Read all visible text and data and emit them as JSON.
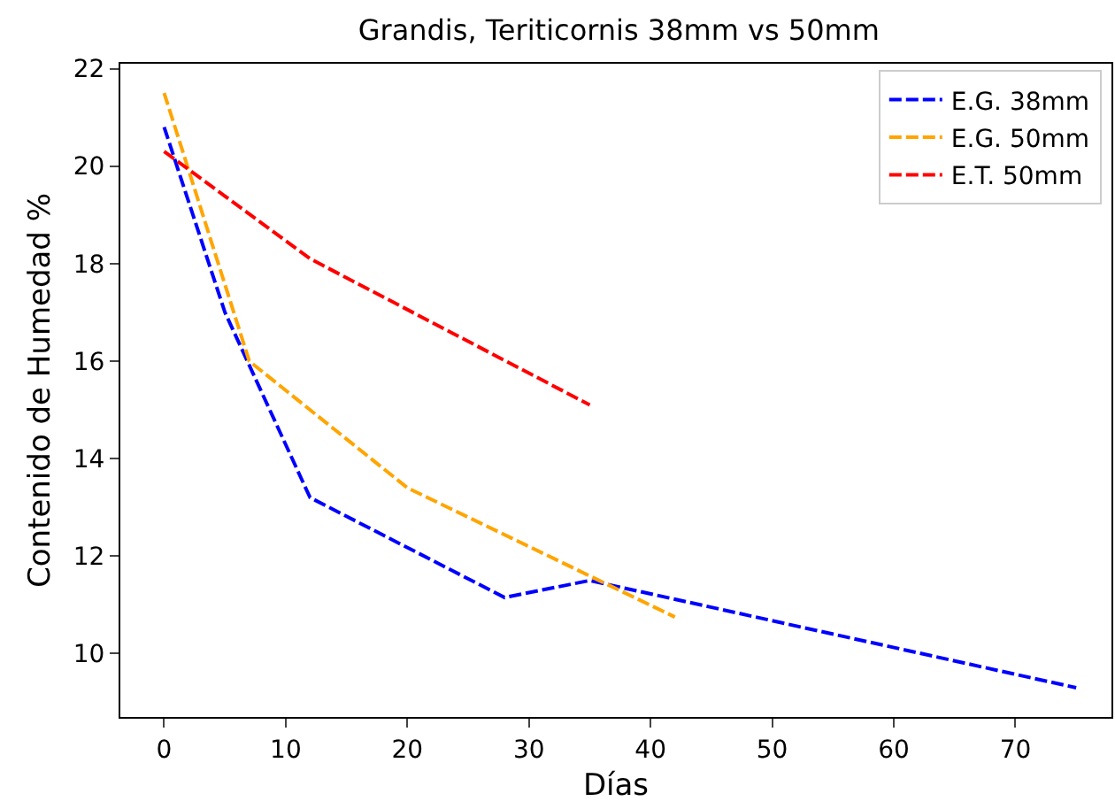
{
  "chart_data": {
    "type": "line",
    "title": "Grandis, Teriticornis 38mm vs 50mm",
    "xlabel": "Días",
    "ylabel": "Contenido de Humedad %",
    "series": [
      {
        "name": "E.G. 38mm",
        "color": "#0000ff",
        "x": [
          0,
          5,
          12,
          28,
          35,
          75
        ],
        "values": [
          20.8,
          17,
          13.2,
          11.15,
          11.5,
          9.3
        ]
      },
      {
        "name": "E.G. 50mm",
        "color": "#ffa500",
        "x": [
          0,
          7,
          20,
          42
        ],
        "values": [
          21.5,
          16,
          13.4,
          10.75
        ]
      },
      {
        "name": "E.T. 50mm",
        "color": "#ff0000",
        "x": [
          0,
          12,
          35
        ],
        "values": [
          20.3,
          18.1,
          15.1
        ]
      }
    ],
    "xlim": [
      -3.6,
      77.9
    ],
    "ylim": [
      8.7,
      22.1
    ],
    "xticks": [
      0,
      10,
      20,
      30,
      40,
      50,
      60,
      70
    ],
    "yticks": [
      10,
      12,
      14,
      16,
      18,
      20,
      22
    ],
    "grid": false,
    "legend": "top right",
    "marker": "none",
    "line_style": "dashed"
  }
}
